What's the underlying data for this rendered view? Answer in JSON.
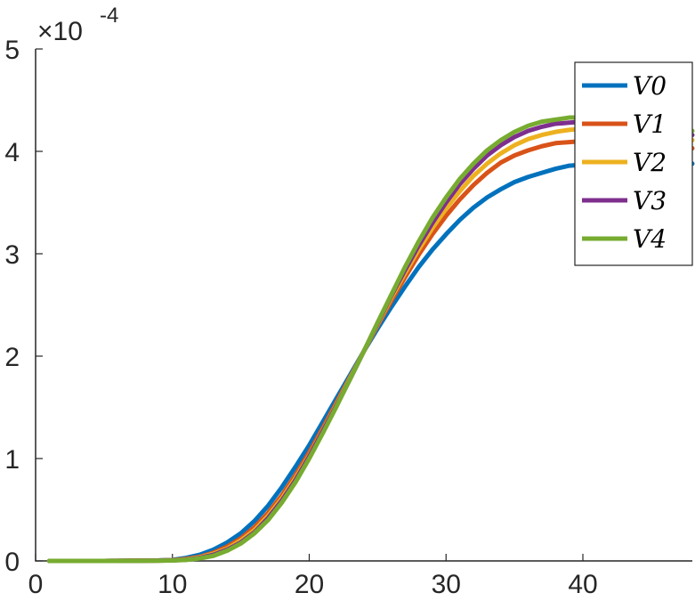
{
  "chart_data": {
    "type": "line",
    "title": "",
    "xlabel": "",
    "ylabel": "",
    "xlim": [
      0,
      48
    ],
    "ylim": [
      0,
      5
    ],
    "x_ticks": [
      "0",
      "10",
      "20",
      "30",
      "40"
    ],
    "x_tick_values": [
      0,
      10,
      20,
      30,
      40
    ],
    "y_ticks": [
      "0",
      "1",
      "2",
      "3",
      "4",
      "5"
    ],
    "y_tick_values": [
      0,
      1,
      2,
      3,
      4,
      5
    ],
    "y_multiplier": {
      "base": "×10",
      "exponent": "-4"
    },
    "grid": false,
    "legend_position": "top-right",
    "x": [
      1,
      5,
      9,
      10,
      11,
      12,
      13,
      14,
      15,
      16,
      17,
      18,
      19,
      20,
      21,
      22,
      23,
      24,
      25,
      26,
      27,
      28,
      29,
      30,
      31,
      32,
      33,
      34,
      35,
      36,
      37,
      38,
      39,
      40,
      41,
      42,
      43,
      44,
      45,
      46,
      47,
      48
    ],
    "series": [
      {
        "name": "V0",
        "color": "#0072BD",
        "values": [
          0,
          0,
          0.005,
          0.01,
          0.03,
          0.06,
          0.11,
          0.18,
          0.27,
          0.39,
          0.54,
          0.72,
          0.92,
          1.13,
          1.36,
          1.59,
          1.82,
          2.05,
          2.27,
          2.48,
          2.68,
          2.87,
          3.04,
          3.19,
          3.33,
          3.45,
          3.55,
          3.63,
          3.7,
          3.75,
          3.79,
          3.83,
          3.86,
          3.87,
          3.88,
          3.88,
          3.88,
          3.88,
          3.88,
          3.88,
          3.88,
          3.88
        ]
      },
      {
        "name": "V1",
        "color": "#D95319",
        "values": [
          0,
          0,
          0.004,
          0.008,
          0.02,
          0.04,
          0.08,
          0.14,
          0.22,
          0.33,
          0.47,
          0.64,
          0.84,
          1.06,
          1.3,
          1.55,
          1.8,
          2.05,
          2.3,
          2.54,
          2.77,
          2.99,
          3.19,
          3.37,
          3.53,
          3.67,
          3.79,
          3.89,
          3.96,
          4.01,
          4.05,
          4.08,
          4.09,
          4.1,
          4.1,
          4.09,
          4.08,
          4.07,
          4.06,
          4.05,
          4.04,
          4.03
        ]
      },
      {
        "name": "V2",
        "color": "#EDB120",
        "values": [
          0,
          0,
          0.003,
          0.006,
          0.015,
          0.035,
          0.07,
          0.12,
          0.2,
          0.3,
          0.44,
          0.61,
          0.81,
          1.03,
          1.28,
          1.53,
          1.79,
          2.05,
          2.31,
          2.57,
          2.81,
          3.04,
          3.25,
          3.44,
          3.61,
          3.76,
          3.88,
          3.98,
          4.06,
          4.12,
          4.16,
          4.19,
          4.21,
          4.22,
          4.22,
          4.21,
          4.2,
          4.19,
          4.17,
          4.15,
          4.13,
          4.11
        ]
      },
      {
        "name": "V3",
        "color": "#7E2F8E",
        "values": [
          0,
          0,
          0.003,
          0.005,
          0.012,
          0.03,
          0.06,
          0.11,
          0.18,
          0.28,
          0.42,
          0.59,
          0.79,
          1.02,
          1.27,
          1.52,
          1.78,
          2.05,
          2.32,
          2.59,
          2.84,
          3.08,
          3.3,
          3.5,
          3.68,
          3.83,
          3.96,
          4.06,
          4.14,
          4.2,
          4.24,
          4.27,
          4.28,
          4.29,
          4.28,
          4.27,
          4.26,
          4.24,
          4.22,
          4.2,
          4.18,
          4.16
        ]
      },
      {
        "name": "V4",
        "color": "#77AC30",
        "values": [
          0,
          0,
          0.002,
          0.004,
          0.01,
          0.025,
          0.05,
          0.1,
          0.17,
          0.27,
          0.4,
          0.57,
          0.77,
          1.0,
          1.25,
          1.51,
          1.78,
          2.05,
          2.33,
          2.6,
          2.87,
          3.12,
          3.35,
          3.55,
          3.73,
          3.88,
          4.01,
          4.11,
          4.19,
          4.25,
          4.29,
          4.31,
          4.33,
          4.33,
          4.33,
          4.32,
          4.3,
          4.28,
          4.26,
          4.24,
          4.22,
          4.2
        ]
      }
    ]
  }
}
